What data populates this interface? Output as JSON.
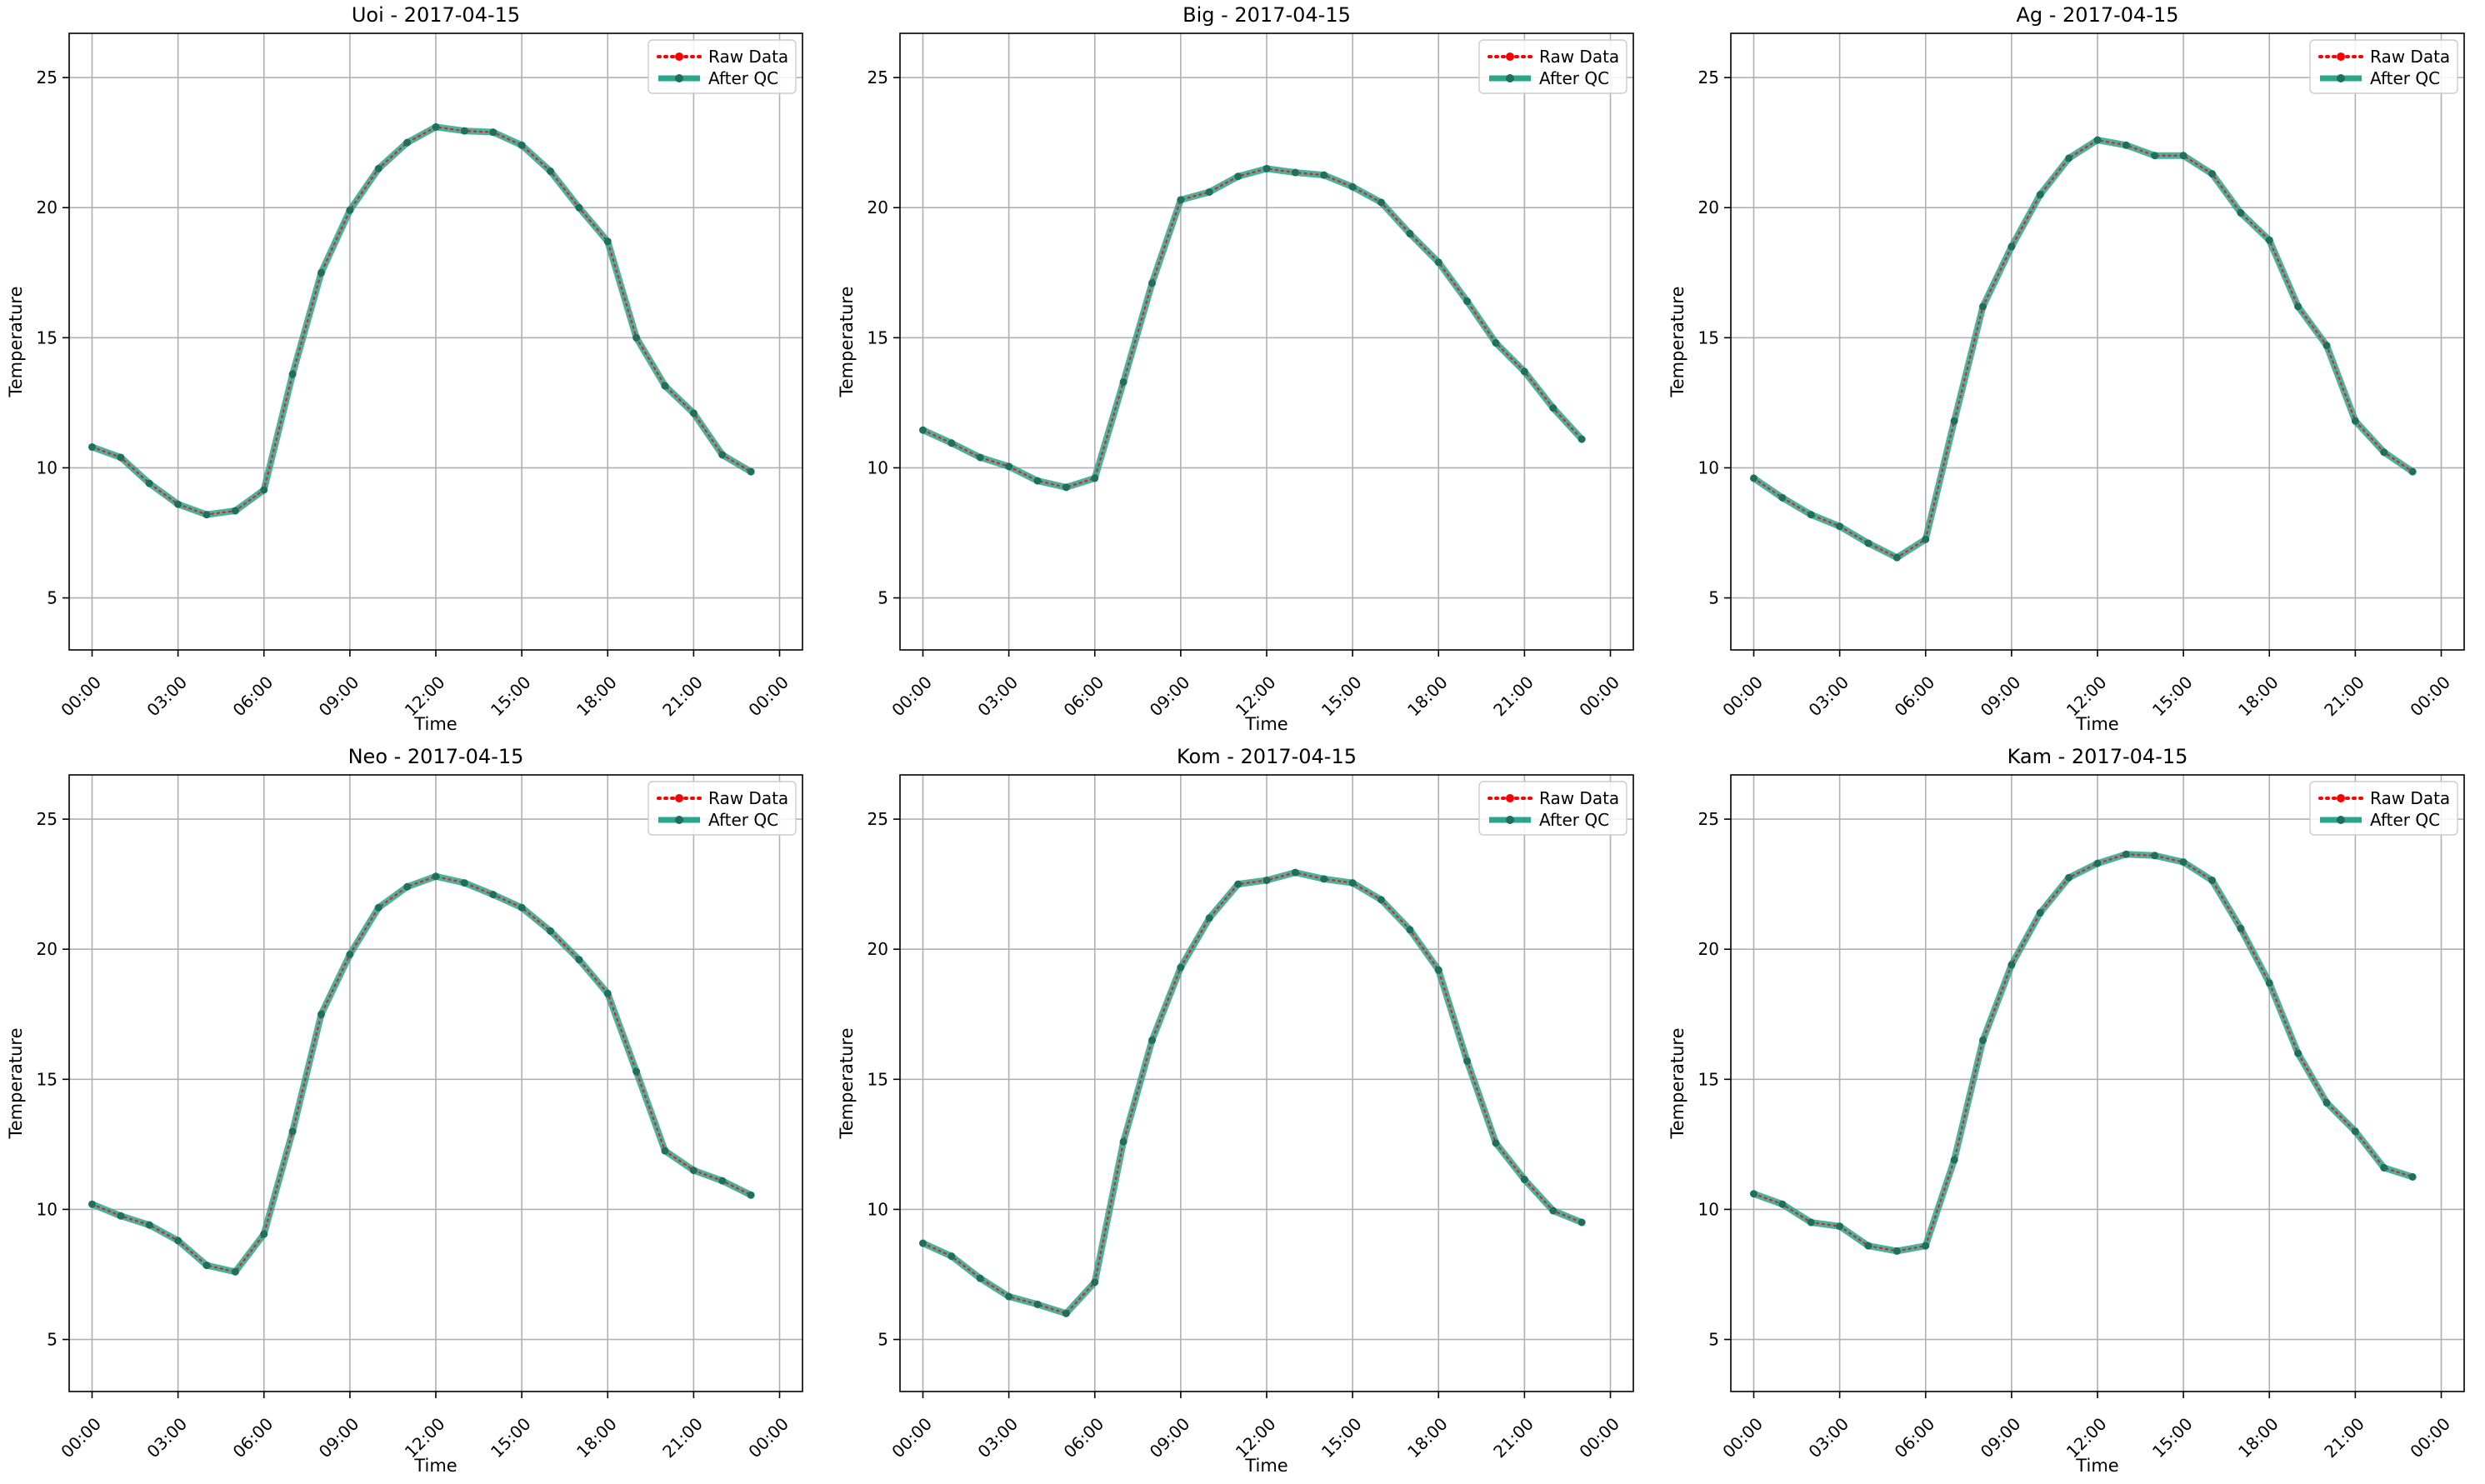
{
  "figure": {
    "type": "line-chart-grid",
    "rows": 2,
    "cols": 3
  },
  "colors": {
    "raw": "#ff0000",
    "qc": "#2ca58d",
    "qc_marker": "#1f6f5c",
    "grid": "#b0b0b0",
    "axes": "#000000"
  },
  "chart_data": [
    {
      "type": "line",
      "title": "Uoi - 2017-04-15",
      "xlabel": "Time",
      "ylabel": "Temperature",
      "x": [
        "00:00",
        "01:00",
        "02:00",
        "03:00",
        "04:00",
        "05:00",
        "06:00",
        "07:00",
        "08:00",
        "09:00",
        "10:00",
        "11:00",
        "12:00",
        "13:00",
        "14:00",
        "15:00",
        "16:00",
        "17:00",
        "18:00",
        "19:00",
        "20:00",
        "21:00",
        "22:00",
        "23:00"
      ],
      "xticks": [
        "00:00",
        "03:00",
        "06:00",
        "09:00",
        "12:00",
        "15:00",
        "18:00",
        "21:00",
        "00:00"
      ],
      "yticks": [
        5,
        10,
        15,
        20,
        25
      ],
      "ylim": [
        3,
        26.7
      ],
      "grid": true,
      "legend_position": "upper right",
      "series": [
        {
          "name": "Raw Data",
          "values": [
            10.8,
            10.4,
            9.4,
            8.6,
            8.2,
            8.35,
            9.15,
            13.6,
            17.5,
            19.9,
            21.5,
            22.5,
            23.1,
            22.95,
            22.9,
            22.4,
            21.4,
            20.0,
            18.7,
            15.0,
            13.15,
            12.1,
            10.5,
            9.85
          ]
        },
        {
          "name": "After QC",
          "values": [
            10.8,
            10.4,
            9.4,
            8.6,
            8.2,
            8.35,
            9.15,
            13.6,
            17.5,
            19.9,
            21.5,
            22.5,
            23.1,
            22.95,
            22.9,
            22.4,
            21.4,
            20.0,
            18.7,
            15.0,
            13.15,
            12.1,
            10.5,
            9.85
          ]
        }
      ]
    },
    {
      "type": "line",
      "title": "Big - 2017-04-15",
      "xlabel": "Time",
      "ylabel": "Temperature",
      "x": [
        "00:00",
        "01:00",
        "02:00",
        "03:00",
        "04:00",
        "05:00",
        "06:00",
        "07:00",
        "08:00",
        "09:00",
        "10:00",
        "11:00",
        "12:00",
        "13:00",
        "14:00",
        "15:00",
        "16:00",
        "17:00",
        "18:00",
        "19:00",
        "20:00",
        "21:00",
        "22:00",
        "23:00"
      ],
      "xticks": [
        "00:00",
        "03:00",
        "06:00",
        "09:00",
        "12:00",
        "15:00",
        "18:00",
        "21:00",
        "00:00"
      ],
      "yticks": [
        5,
        10,
        15,
        20,
        25
      ],
      "ylim": [
        3,
        26.7
      ],
      "grid": true,
      "legend_position": "upper right",
      "series": [
        {
          "name": "Raw Data",
          "values": [
            11.45,
            10.95,
            10.4,
            10.05,
            9.5,
            9.25,
            9.6,
            13.3,
            17.1,
            20.3,
            20.6,
            21.2,
            21.5,
            21.35,
            21.25,
            20.8,
            20.2,
            19.0,
            17.9,
            16.4,
            14.8,
            13.7,
            12.3,
            11.1
          ]
        },
        {
          "name": "After QC",
          "values": [
            11.45,
            10.95,
            10.4,
            10.05,
            9.5,
            9.25,
            9.6,
            13.3,
            17.1,
            20.3,
            20.6,
            21.2,
            21.5,
            21.35,
            21.25,
            20.8,
            20.2,
            19.0,
            17.9,
            16.4,
            14.8,
            13.7,
            12.3,
            11.1
          ]
        }
      ]
    },
    {
      "type": "line",
      "title": "Ag - 2017-04-15",
      "xlabel": "Time",
      "ylabel": "Temperature",
      "x": [
        "00:00",
        "01:00",
        "02:00",
        "03:00",
        "04:00",
        "05:00",
        "06:00",
        "07:00",
        "08:00",
        "09:00",
        "10:00",
        "11:00",
        "12:00",
        "13:00",
        "14:00",
        "15:00",
        "16:00",
        "17:00",
        "18:00",
        "19:00",
        "20:00",
        "21:00",
        "22:00",
        "23:00"
      ],
      "xticks": [
        "00:00",
        "03:00",
        "06:00",
        "09:00",
        "12:00",
        "15:00",
        "18:00",
        "21:00",
        "00:00"
      ],
      "yticks": [
        5,
        10,
        15,
        20,
        25
      ],
      "ylim": [
        3,
        26.7
      ],
      "grid": true,
      "legend_position": "upper right",
      "series": [
        {
          "name": "Raw Data",
          "values": [
            9.6,
            8.85,
            8.2,
            7.75,
            7.1,
            6.55,
            7.25,
            11.8,
            16.2,
            18.5,
            20.5,
            21.9,
            22.6,
            22.4,
            22.0,
            22.0,
            21.3,
            19.8,
            18.75,
            16.2,
            14.7,
            11.8,
            10.6,
            9.85
          ]
        },
        {
          "name": "After QC",
          "values": [
            9.6,
            8.85,
            8.2,
            7.75,
            7.1,
            6.55,
            7.25,
            11.8,
            16.2,
            18.5,
            20.5,
            21.9,
            22.6,
            22.4,
            22.0,
            22.0,
            21.3,
            19.8,
            18.75,
            16.2,
            14.7,
            11.8,
            10.6,
            9.85
          ]
        }
      ]
    },
    {
      "type": "line",
      "title": "Neo - 2017-04-15",
      "xlabel": "Time",
      "ylabel": "Temperature",
      "x": [
        "00:00",
        "01:00",
        "02:00",
        "03:00",
        "04:00",
        "05:00",
        "06:00",
        "07:00",
        "08:00",
        "09:00",
        "10:00",
        "11:00",
        "12:00",
        "13:00",
        "14:00",
        "15:00",
        "16:00",
        "17:00",
        "18:00",
        "19:00",
        "20:00",
        "21:00",
        "22:00",
        "23:00"
      ],
      "xticks": [
        "00:00",
        "03:00",
        "06:00",
        "09:00",
        "12:00",
        "15:00",
        "18:00",
        "21:00",
        "00:00"
      ],
      "yticks": [
        5,
        10,
        15,
        20,
        25
      ],
      "ylim": [
        3,
        26.7
      ],
      "grid": true,
      "legend_position": "upper right",
      "series": [
        {
          "name": "Raw Data",
          "values": [
            10.2,
            9.75,
            9.4,
            8.8,
            7.85,
            7.6,
            9.05,
            13.0,
            17.5,
            19.8,
            21.6,
            22.4,
            22.8,
            22.55,
            22.1,
            21.6,
            20.7,
            19.6,
            18.3,
            15.3,
            12.25,
            11.5,
            11.1,
            10.55
          ]
        },
        {
          "name": "After QC",
          "values": [
            10.2,
            9.75,
            9.4,
            8.8,
            7.85,
            7.6,
            9.05,
            13.0,
            17.5,
            19.8,
            21.6,
            22.4,
            22.8,
            22.55,
            22.1,
            21.6,
            20.7,
            19.6,
            18.3,
            15.3,
            12.25,
            11.5,
            11.1,
            10.55
          ]
        }
      ]
    },
    {
      "type": "line",
      "title": "Kom - 2017-04-15",
      "xlabel": "Time",
      "ylabel": "Temperature",
      "x": [
        "00:00",
        "01:00",
        "02:00",
        "03:00",
        "04:00",
        "05:00",
        "06:00",
        "07:00",
        "08:00",
        "09:00",
        "10:00",
        "11:00",
        "12:00",
        "13:00",
        "14:00",
        "15:00",
        "16:00",
        "17:00",
        "18:00",
        "19:00",
        "20:00",
        "21:00",
        "22:00",
        "23:00"
      ],
      "xticks": [
        "00:00",
        "03:00",
        "06:00",
        "09:00",
        "12:00",
        "15:00",
        "18:00",
        "21:00",
        "00:00"
      ],
      "yticks": [
        5,
        10,
        15,
        20,
        25
      ],
      "ylim": [
        3,
        26.7
      ],
      "grid": true,
      "legend_position": "upper right",
      "series": [
        {
          "name": "Raw Data",
          "values": [
            8.7,
            8.2,
            7.35,
            6.65,
            6.35,
            6.0,
            7.2,
            12.6,
            16.5,
            19.3,
            21.2,
            22.5,
            22.65,
            22.95,
            22.7,
            22.55,
            21.9,
            20.75,
            19.2,
            15.7,
            12.55,
            11.15,
            9.95,
            9.5
          ]
        },
        {
          "name": "After QC",
          "values": [
            8.7,
            8.2,
            7.35,
            6.65,
            6.35,
            6.0,
            7.2,
            12.6,
            16.5,
            19.3,
            21.2,
            22.5,
            22.65,
            22.95,
            22.7,
            22.55,
            21.9,
            20.75,
            19.2,
            15.7,
            12.55,
            11.15,
            9.95,
            9.5
          ]
        }
      ]
    },
    {
      "type": "line",
      "title": "Kam - 2017-04-15",
      "xlabel": "Time",
      "ylabel": "Temperature",
      "x": [
        "00:00",
        "01:00",
        "02:00",
        "03:00",
        "04:00",
        "05:00",
        "06:00",
        "07:00",
        "08:00",
        "09:00",
        "10:00",
        "11:00",
        "12:00",
        "13:00",
        "14:00",
        "15:00",
        "16:00",
        "17:00",
        "18:00",
        "19:00",
        "20:00",
        "21:00",
        "22:00",
        "23:00"
      ],
      "xticks": [
        "00:00",
        "03:00",
        "06:00",
        "09:00",
        "12:00",
        "15:00",
        "18:00",
        "21:00",
        "00:00"
      ],
      "yticks": [
        5,
        10,
        15,
        20,
        25
      ],
      "ylim": [
        3,
        26.7
      ],
      "grid": true,
      "legend_position": "upper right",
      "series": [
        {
          "name": "Raw Data",
          "values": [
            10.6,
            10.2,
            9.5,
            9.35,
            8.6,
            8.4,
            8.6,
            11.9,
            16.5,
            19.4,
            21.4,
            22.75,
            23.3,
            23.65,
            23.6,
            23.35,
            22.65,
            20.8,
            18.7,
            16.0,
            14.1,
            13.0,
            11.6,
            11.25
          ]
        },
        {
          "name": "After QC",
          "values": [
            10.6,
            10.2,
            9.5,
            9.35,
            8.6,
            8.4,
            8.6,
            11.9,
            16.5,
            19.4,
            21.4,
            22.75,
            23.3,
            23.65,
            23.6,
            23.35,
            22.65,
            20.8,
            18.7,
            16.0,
            14.1,
            13.0,
            11.6,
            11.25
          ]
        }
      ]
    }
  ]
}
